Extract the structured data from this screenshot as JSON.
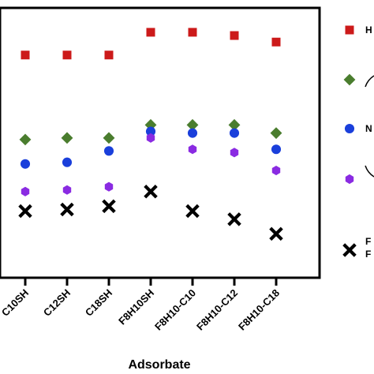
{
  "chart_data": {
    "type": "scatter",
    "xlabel": "Adsorbate",
    "categories": [
      "C10SH",
      "C12SH",
      "C18SH",
      "F8H10SH",
      "F8H10-C10",
      "F8H10-C12",
      "F8H10-C18"
    ],
    "series": [
      {
        "marker": "square",
        "color": "#cc1a1a",
        "values": [
          88.5,
          88.5,
          88.5,
          95.5,
          95.5,
          94.5,
          92.5
        ]
      },
      {
        "marker": "diamond",
        "color": "#4a7d2e",
        "values": [
          62.5,
          63.0,
          63.0,
          67.0,
          67.0,
          67.0,
          64.5
        ]
      },
      {
        "marker": "circle",
        "color": "#1a3fdb",
        "values": [
          55.0,
          55.5,
          59.0,
          65.0,
          64.5,
          64.5,
          59.5
        ]
      },
      {
        "marker": "hexagon",
        "color": "#8a2be2",
        "values": [
          46.5,
          47.0,
          48.0,
          63.0,
          59.5,
          58.5,
          53.0
        ]
      },
      {
        "marker": "x",
        "color": "#000000",
        "values": [
          40.5,
          41.0,
          42.0,
          46.5,
          40.5,
          38.0,
          33.5
        ]
      }
    ],
    "legend": {
      "placement": "right",
      "entries": [
        {
          "marker": "square",
          "color": "#cc1a1a",
          "text": "H"
        },
        {
          "marker": "diamond",
          "color": "#4a7d2e",
          "text": ""
        },
        {
          "marker": "circle",
          "color": "#1a3fdb",
          "text": "N"
        },
        {
          "marker": "hexagon",
          "color": "#8a2be2",
          "text": ""
        },
        {
          "marker": "x",
          "color": "#000000",
          "text": "F",
          "text2": "F"
        }
      ]
    }
  }
}
